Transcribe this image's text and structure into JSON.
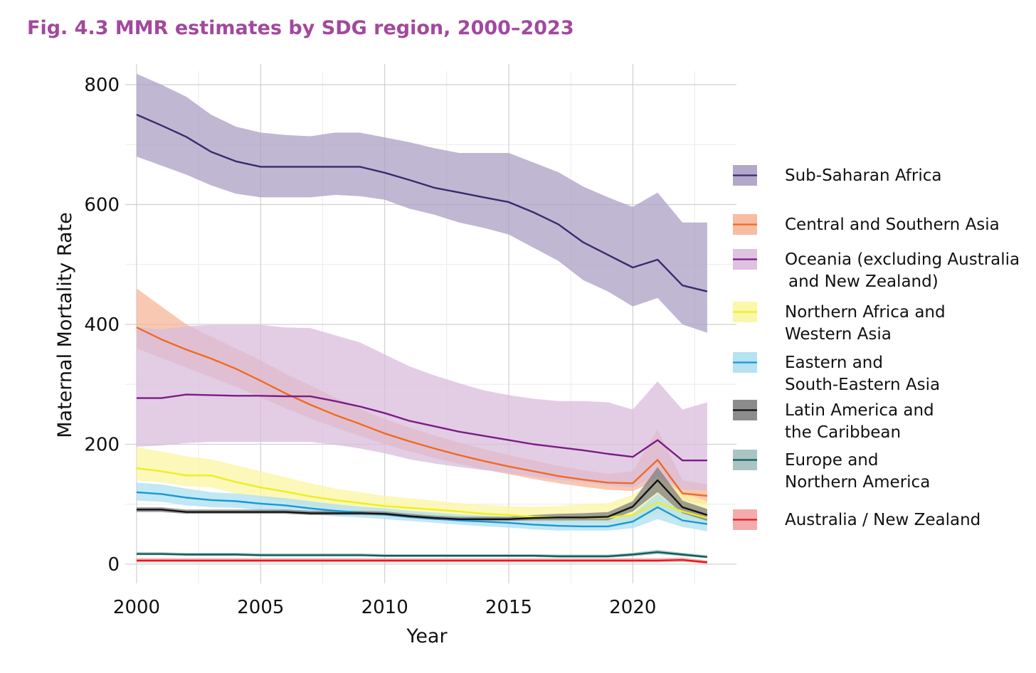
{
  "title": "Fig. 4.3 MMR estimates by SDG region, 2000–2023",
  "chart_data": {
    "type": "line",
    "title": "Fig. 4.3 MMR estimates by SDG region, 2000–2023",
    "xlabel": "Year",
    "ylabel": "Maternal Mortality Rate",
    "xlim": [
      2000,
      2024
    ],
    "ylim": [
      -30,
      830
    ],
    "x_ticks": [
      2000,
      2005,
      2010,
      2015,
      2020
    ],
    "y_ticks": [
      0,
      200,
      400,
      600,
      800
    ],
    "grid": true,
    "legend_position": "right",
    "bands": "shaded uncertainty intervals (lower/upper) around each series",
    "x": [
      2000,
      2001,
      2002,
      2003,
      2004,
      2005,
      2006,
      2007,
      2008,
      2009,
      2010,
      2011,
      2012,
      2013,
      2014,
      2015,
      2016,
      2017,
      2018,
      2019,
      2020,
      2021,
      2022,
      2023
    ],
    "series": [
      {
        "name": "Sub-Saharan Africa",
        "legend": [
          "Sub-Saharan Africa"
        ],
        "color": "#3b2a6e",
        "fill": "#ab9fc4",
        "values": [
          750,
          732,
          713,
          688,
          672,
          663,
          663,
          663,
          663,
          663,
          653,
          641,
          628,
          620,
          612,
          604,
          587,
          567,
          537,
          516,
          495,
          508,
          465,
          455
        ],
        "lower": [
          680,
          665,
          650,
          632,
          618,
          612,
          612,
          612,
          616,
          614,
          608,
          593,
          583,
          570,
          561,
          550,
          528,
          506,
          474,
          455,
          430,
          444,
          400,
          386
        ],
        "upper": [
          818,
          800,
          780,
          750,
          730,
          720,
          716,
          714,
          720,
          720,
          712,
          704,
          694,
          686,
          686,
          686,
          670,
          654,
          630,
          612,
          596,
          620,
          570,
          570
        ]
      },
      {
        "name": "Central and Southern Asia",
        "legend": [
          "Central and Southern Asia"
        ],
        "color": "#f06a22",
        "fill": "#f6b598",
        "values": [
          395,
          375,
          358,
          343,
          326,
          306,
          285,
          266,
          249,
          234,
          218,
          205,
          193,
          182,
          172,
          163,
          155,
          147,
          141,
          136,
          135,
          174,
          118,
          114
        ],
        "lower": [
          360,
          344,
          328,
          312,
          296,
          278,
          260,
          243,
          228,
          214,
          200,
          188,
          177,
          167,
          158,
          150,
          142,
          135,
          129,
          124,
          122,
          140,
          105,
          100
        ],
        "upper": [
          460,
          430,
          400,
          380,
          360,
          340,
          318,
          298,
          278,
          260,
          242,
          228,
          215,
          203,
          192,
          182,
          173,
          164,
          157,
          151,
          155,
          225,
          140,
          133
        ]
      },
      {
        "name": "Oceania (excluding Australia and New Zealand)",
        "legend": [
          "Oceania (excluding Australia",
          "and New Zealand)"
        ],
        "color": "#7b1c85",
        "fill": "#d9bcdc",
        "values": [
          277,
          277,
          283,
          282,
          281,
          281,
          280,
          280,
          272,
          263,
          252,
          239,
          230,
          221,
          214,
          207,
          200,
          195,
          190,
          184,
          179,
          207,
          173,
          173
        ],
        "lower": [
          196,
          198,
          202,
          204,
          204,
          204,
          204,
          204,
          199,
          193,
          185,
          175,
          168,
          162,
          157,
          152,
          146,
          141,
          137,
          132,
          128,
          148,
          124,
          123
        ],
        "upper": [
          395,
          392,
          397,
          399,
          399,
          399,
          395,
          394,
          382,
          370,
          350,
          330,
          315,
          302,
          290,
          282,
          276,
          272,
          272,
          270,
          258,
          305,
          258,
          270
        ]
      },
      {
        "name": "Northern Africa and Western Asia",
        "legend": [
          "Northern Africa and",
          "Western Asia"
        ],
        "color": "#eeee22",
        "fill": "#f9f6a2",
        "values": [
          160,
          155,
          148,
          148,
          137,
          128,
          121,
          113,
          107,
          102,
          97,
          94,
          91,
          88,
          84,
          82,
          79,
          78,
          78,
          78,
          82,
          103,
          88,
          77
        ],
        "lower": [
          140,
          136,
          130,
          128,
          118,
          110,
          104,
          97,
          92,
          88,
          85,
          82,
          80,
          78,
          75,
          73,
          70,
          69,
          69,
          69,
          70,
          85,
          72,
          62
        ],
        "upper": [
          195,
          188,
          180,
          175,
          165,
          155,
          145,
          135,
          126,
          120,
          114,
          110,
          106,
          102,
          99,
          97,
          96,
          97,
          100,
          102,
          115,
          145,
          120,
          105
        ]
      },
      {
        "name": "Eastern and South-Eastern Asia",
        "legend": [
          "Eastern and",
          "South-Eastern Asia"
        ],
        "color": "#1799d3",
        "fill": "#aedff1",
        "values": [
          120,
          117,
          111,
          107,
          105,
          101,
          98,
          93,
          89,
          86,
          83,
          79,
          76,
          73,
          71,
          69,
          66,
          64,
          63,
          63,
          71,
          95,
          73,
          67
        ],
        "lower": [
          106,
          104,
          98,
          95,
          94,
          90,
          87,
          83,
          80,
          78,
          75,
          72,
          69,
          66,
          63,
          61,
          58,
          56,
          56,
          56,
          60,
          75,
          62,
          55
        ],
        "upper": [
          136,
          133,
          126,
          120,
          118,
          114,
          110,
          105,
          100,
          96,
          93,
          89,
          86,
          83,
          81,
          79,
          77,
          75,
          73,
          73,
          84,
          118,
          86,
          80
        ]
      },
      {
        "name": "Latin America and the Caribbean",
        "legend": [
          "Latin America and",
          "the Caribbean"
        ],
        "color": "#111111",
        "fill": "#7f7f7f",
        "values": [
          91,
          91,
          87,
          87,
          87,
          87,
          87,
          85,
          85,
          85,
          84,
          80,
          77,
          75,
          75,
          75,
          77,
          78,
          78,
          79,
          96,
          140,
          95,
          82
        ],
        "lower": [
          87,
          87,
          84,
          84,
          84,
          84,
          84,
          82,
          82,
          82,
          81,
          77,
          74,
          72,
          72,
          72,
          73,
          73,
          73,
          73,
          88,
          120,
          85,
          72
        ],
        "upper": [
          95,
          95,
          91,
          91,
          91,
          91,
          91,
          89,
          89,
          89,
          88,
          84,
          81,
          79,
          79,
          79,
          82,
          84,
          85,
          87,
          105,
          162,
          106,
          92
        ]
      },
      {
        "name": "Europe and Northern America",
        "legend": [
          "Europe and",
          "Northern America"
        ],
        "color": "#0f5d5c",
        "fill": "#9ebfbd",
        "values": [
          17,
          17,
          16,
          16,
          16,
          15,
          15,
          15,
          15,
          15,
          14,
          14,
          14,
          14,
          14,
          14,
          14,
          13,
          13,
          13,
          16,
          20,
          16,
          12
        ],
        "lower": [
          15,
          15,
          14,
          14,
          14,
          13,
          13,
          13,
          13,
          13,
          12,
          12,
          12,
          12,
          12,
          12,
          12,
          11,
          11,
          11,
          13,
          17,
          13,
          10
        ],
        "upper": [
          20,
          20,
          19,
          19,
          19,
          18,
          18,
          18,
          18,
          18,
          17,
          17,
          17,
          17,
          17,
          17,
          17,
          16,
          16,
          16,
          19,
          24,
          19,
          15
        ]
      },
      {
        "name": "Australia / New Zealand",
        "legend": [
          "Australia / New Zealand"
        ],
        "color": "#e8161b",
        "fill": "#f4a2a2",
        "values": [
          6,
          6,
          6,
          6,
          6,
          6,
          6,
          6,
          6,
          6,
          6,
          6,
          6,
          6,
          6,
          6,
          6,
          6,
          6,
          6,
          6,
          6,
          7,
          3
        ],
        "lower": [
          3,
          3,
          3,
          3,
          3,
          3,
          3,
          3,
          3,
          3,
          3,
          3,
          3,
          3,
          3,
          3,
          3,
          3,
          3,
          3,
          3,
          3,
          4,
          1
        ],
        "upper": [
          10,
          10,
          10,
          10,
          10,
          10,
          10,
          10,
          10,
          10,
          10,
          10,
          10,
          10,
          10,
          10,
          10,
          10,
          10,
          10,
          10,
          10,
          11,
          6
        ]
      }
    ]
  }
}
